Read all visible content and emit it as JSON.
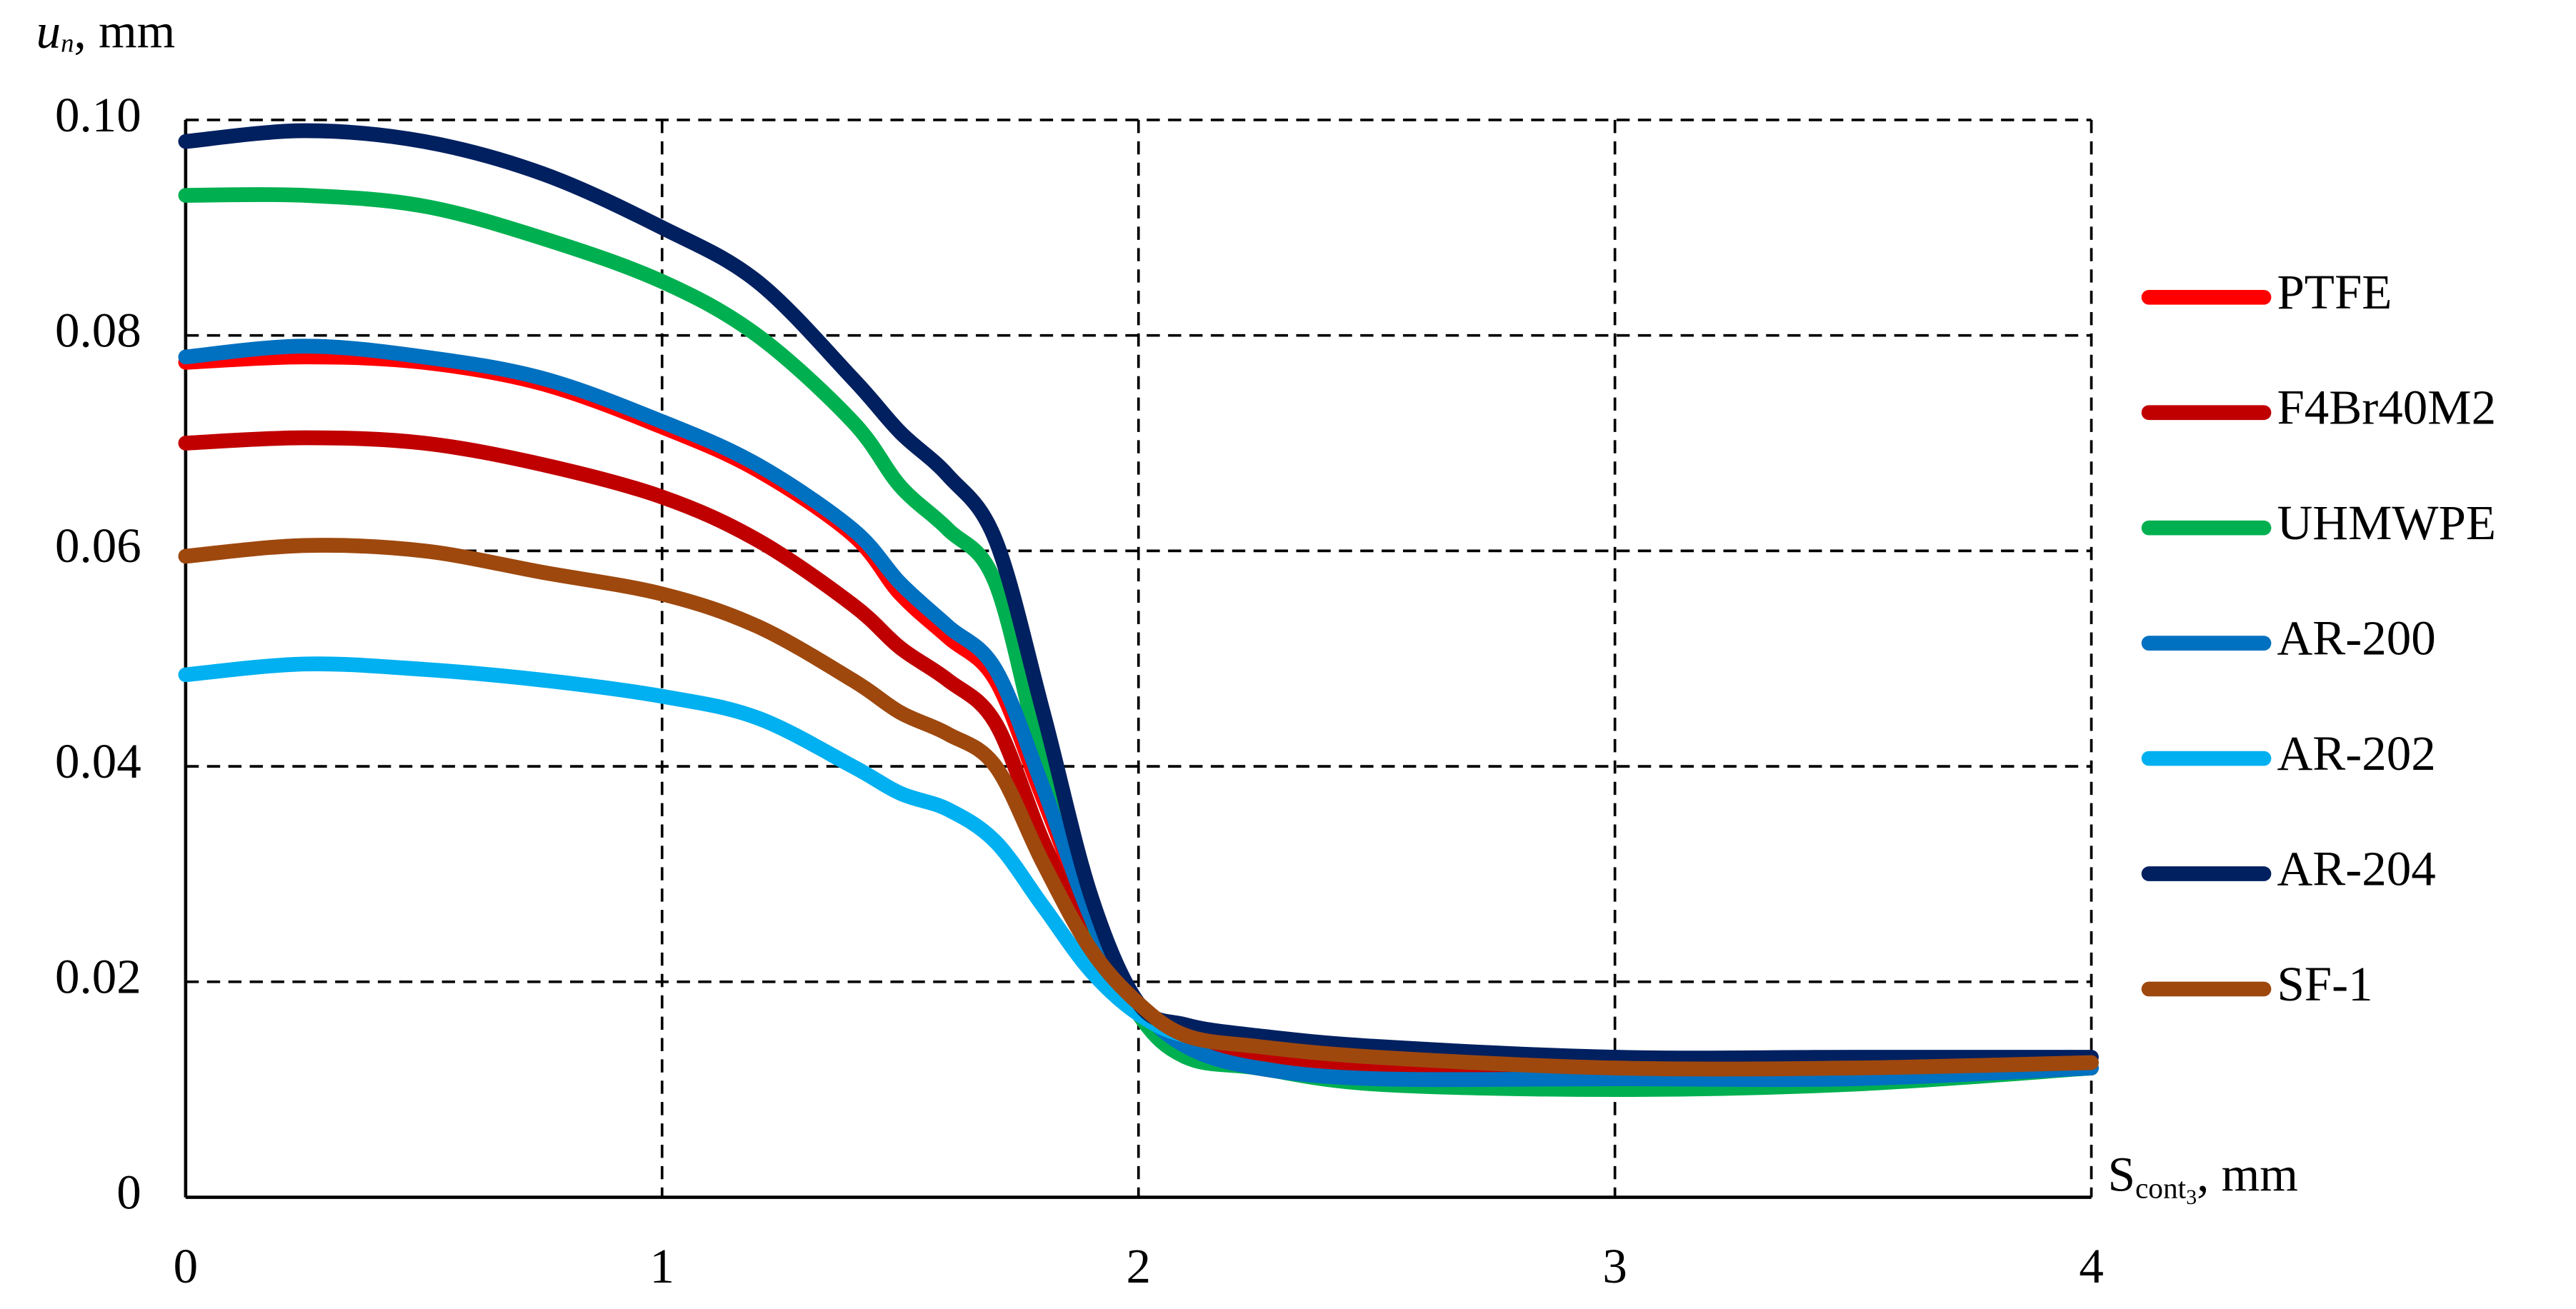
{
  "chart_data": {
    "type": "line",
    "ylabel": {
      "symbol": "u",
      "subscript": "n",
      "unit": ", mm"
    },
    "xlabel": {
      "symbol": "S",
      "subscript": "cont",
      "subsubscript": "3",
      "unit": ", mm"
    },
    "x": [
      0,
      0.25,
      0.5,
      0.75,
      1,
      1.2,
      1.4,
      1.5,
      1.6,
      1.7,
      1.8,
      1.9,
      2,
      2.1,
      2.25,
      2.5,
      3,
      3.5,
      4
    ],
    "series": [
      {
        "name": "PTFE",
        "color": "#ff0000",
        "values": [
          0.0775,
          0.078,
          0.0775,
          0.0755,
          0.0715,
          0.0675,
          0.0615,
          0.056,
          0.052,
          0.048,
          0.037,
          0.026,
          0.018,
          0.014,
          0.012,
          0.011,
          0.011,
          0.011,
          0.012
        ]
      },
      {
        "name": "F4Br40M2",
        "color": "#c00000",
        "values": [
          0.07,
          0.0705,
          0.07,
          0.068,
          0.065,
          0.061,
          0.055,
          0.051,
          0.048,
          0.044,
          0.033,
          0.024,
          0.018,
          0.015,
          0.013,
          0.012,
          0.0115,
          0.0115,
          0.012
        ]
      },
      {
        "name": "UHMWPE",
        "color": "#00b050",
        "values": [
          0.093,
          0.093,
          0.092,
          0.089,
          0.085,
          0.08,
          0.072,
          0.066,
          0.062,
          0.057,
          0.04,
          0.026,
          0.017,
          0.013,
          0.012,
          0.0105,
          0.01,
          0.0105,
          0.012
        ]
      },
      {
        "name": "AR-200",
        "color": "#0070c0",
        "values": [
          0.078,
          0.079,
          0.078,
          0.076,
          0.072,
          0.068,
          0.062,
          0.057,
          0.053,
          0.049,
          0.038,
          0.026,
          0.018,
          0.014,
          0.012,
          0.011,
          0.011,
          0.011,
          0.012
        ]
      },
      {
        "name": "AR-202",
        "color": "#00b0f0",
        "values": [
          0.0485,
          0.0495,
          0.049,
          0.048,
          0.0465,
          0.0445,
          0.04,
          0.0375,
          0.036,
          0.033,
          0.027,
          0.021,
          0.017,
          0.015,
          0.0145,
          0.0135,
          0.013,
          0.0125,
          0.0125
        ]
      },
      {
        "name": "AR-204",
        "color": "#002060",
        "values": [
          0.098,
          0.099,
          0.098,
          0.095,
          0.09,
          0.085,
          0.076,
          0.071,
          0.067,
          0.061,
          0.045,
          0.028,
          0.018,
          0.016,
          0.015,
          0.014,
          0.013,
          0.013,
          0.013
        ]
      },
      {
        "name": "SF-1",
        "color": "#9e480e",
        "values": [
          0.0595,
          0.0605,
          0.06,
          0.058,
          0.056,
          0.053,
          0.048,
          0.045,
          0.043,
          0.04,
          0.031,
          0.023,
          0.018,
          0.015,
          0.014,
          0.013,
          0.012,
          0.012,
          0.0125
        ]
      }
    ],
    "xlim": [
      0,
      4
    ],
    "xticks": [
      0,
      1,
      2,
      3,
      4
    ],
    "ylim": [
      0,
      0.1
    ],
    "yticks": [
      0,
      0.02,
      0.04,
      0.06,
      0.08,
      {
        "value": 0.1,
        "label": "0.10"
      }
    ],
    "grid": true,
    "legend": "right"
  }
}
